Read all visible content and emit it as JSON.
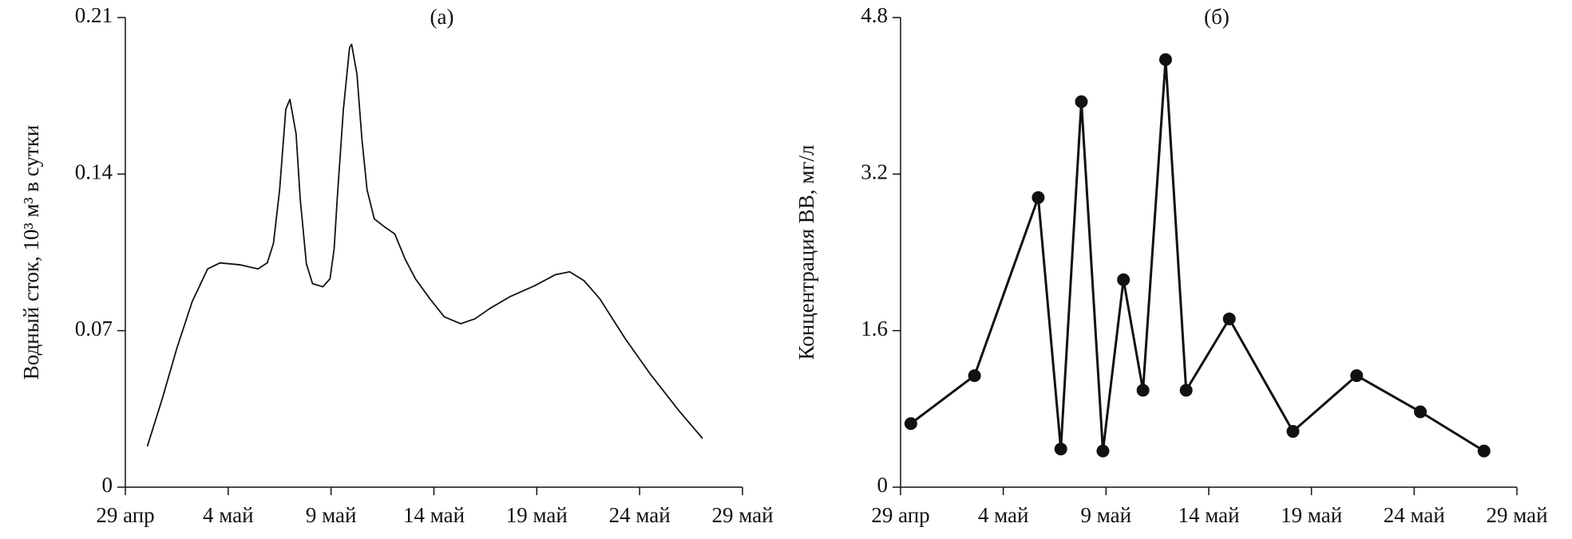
{
  "chart_data": [
    {
      "type": "line",
      "title": "(а)",
      "ylabel": "Водный сток, 10³ м³ в сутки",
      "color": "#111111",
      "markers": false,
      "x": [
        1.07,
        1.8,
        2.5,
        3.25,
        4.0,
        4.6,
        5.6,
        6.45,
        6.9,
        7.2,
        7.5,
        7.8,
        8.0,
        8.3,
        8.5,
        8.8,
        9.1,
        9.6,
        9.95,
        10.15,
        10.3,
        10.6,
        10.9,
        11.0,
        11.26,
        11.5,
        11.75,
        12.1,
        12.6,
        13.1,
        13.6,
        14.1,
        14.8,
        15.5,
        16.3,
        17.0,
        17.7,
        18.7,
        19.9,
        20.9,
        21.6,
        22.3,
        23.06,
        24.3,
        25.5,
        26.9,
        28.06
      ],
      "values": [
        0.0183,
        0.0397,
        0.062,
        0.083,
        0.0976,
        0.1003,
        0.0994,
        0.0976,
        0.1003,
        0.109,
        0.133,
        0.169,
        0.1734,
        0.158,
        0.129,
        0.0999,
        0.091,
        0.0896,
        0.0932,
        0.1066,
        0.129,
        0.169,
        0.1966,
        0.198,
        0.1846,
        0.1556,
        0.133,
        0.12,
        0.1164,
        0.1132,
        0.102,
        0.0932,
        0.0843,
        0.0762,
        0.0731,
        0.0753,
        0.0798,
        0.0852,
        0.0901,
        0.095,
        0.0963,
        0.0923,
        0.0843,
        0.0664,
        0.0508,
        0.0343,
        0.0218
      ],
      "xlim": [
        0,
        30
      ],
      "xticks": [
        {
          "value": 0,
          "label": "29 апр"
        },
        {
          "value": 5,
          "label": "4 май"
        },
        {
          "value": 10,
          "label": "9 май"
        },
        {
          "value": 15,
          "label": "14 май"
        },
        {
          "value": 20,
          "label": "19 май"
        },
        {
          "value": 25,
          "label": "24 май"
        },
        {
          "value": 30,
          "label": "29 май"
        }
      ],
      "ylim": [
        0,
        0.21
      ],
      "yticks": [
        0,
        0.07,
        0.14,
        0.21
      ]
    },
    {
      "type": "line",
      "title": "(б)",
      "ylabel": "Концентрация ВВ, мг/л",
      "color": "#111111",
      "markers": true,
      "x": [
        0.5,
        3.6,
        6.7,
        7.8,
        8.8,
        9.85,
        10.85,
        11.8,
        12.9,
        13.9,
        16.0,
        19.1,
        22.2,
        25.3,
        28.4
      ],
      "values": [
        0.65,
        1.14,
        2.96,
        0.39,
        3.94,
        0.37,
        2.12,
        0.99,
        4.37,
        0.99,
        1.72,
        0.57,
        1.14,
        0.77,
        0.37
      ],
      "xlim": [
        0,
        30
      ],
      "xticks": [
        {
          "value": 0,
          "label": "29 апр"
        },
        {
          "value": 5,
          "label": "4 май"
        },
        {
          "value": 10,
          "label": "9 май"
        },
        {
          "value": 15,
          "label": "14 май"
        },
        {
          "value": 20,
          "label": "19 май"
        },
        {
          "value": 25,
          "label": "24 май"
        },
        {
          "value": 30,
          "label": "29 май"
        }
      ],
      "ylim": [
        0,
        4.8
      ],
      "yticks": [
        0,
        1.6,
        3.2,
        4.8
      ]
    }
  ]
}
